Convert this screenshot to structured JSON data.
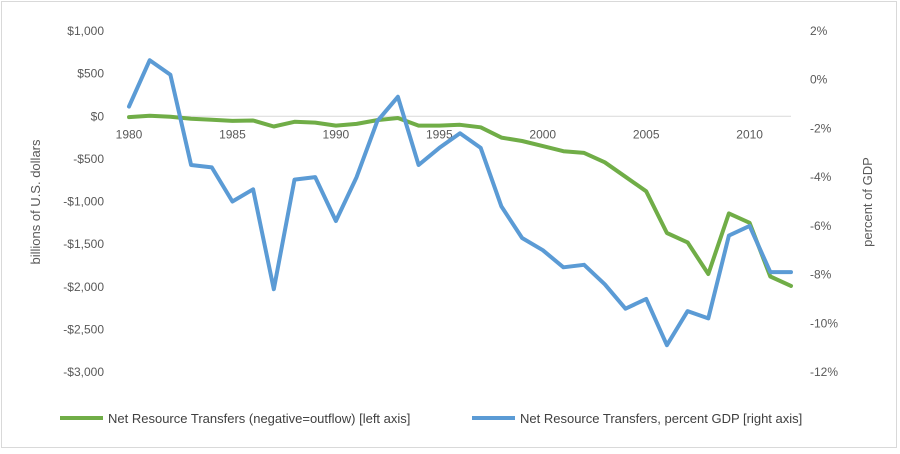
{
  "chart_data": {
    "type": "line",
    "title": "",
    "x": [
      1980,
      1981,
      1982,
      1983,
      1984,
      1985,
      1986,
      1987,
      1988,
      1989,
      1990,
      1991,
      1992,
      1993,
      1994,
      1995,
      1996,
      1997,
      1998,
      1999,
      2000,
      2001,
      2002,
      2003,
      2004,
      2005,
      2006,
      2007,
      2008,
      2009,
      2010,
      2011,
      2012
    ],
    "x_tick_labels": [
      "1980",
      "1985",
      "1990",
      "1995",
      "2000",
      "2005",
      "2010"
    ],
    "x_ticks": [
      1980,
      1985,
      1990,
      1995,
      2000,
      2005,
      2010
    ],
    "xlim": [
      1980,
      2012
    ],
    "left_axis": {
      "label": "billions of U.S. dollars",
      "ylim": [
        -3000,
        1000
      ],
      "ticks": [
        1000,
        500,
        0,
        -500,
        -1000,
        -1500,
        -2000,
        -2500,
        -3000
      ],
      "tick_labels": [
        "$1,000",
        "$500",
        "$0",
        "-$500",
        "-$1,000",
        "-$1,500",
        "-$2,000",
        "-$2,500",
        "-$3,000"
      ]
    },
    "right_axis": {
      "label": "percent of GDP",
      "ylim": [
        -12,
        2
      ],
      "ticks": [
        2,
        0,
        -2,
        -4,
        -6,
        -8,
        -10,
        -12
      ],
      "tick_labels": [
        "2%",
        "0%",
        "-2%",
        "-4%",
        "-6%",
        "-8%",
        "-10%",
        "-12%"
      ]
    },
    "grid": false,
    "legend_position": "bottom",
    "series": [
      {
        "name": "Net Resource Transfers (negative=outflow) [left axis]",
        "axis": "left",
        "color": "#70ad47",
        "values": [
          -10,
          5,
          -5,
          -30,
          -40,
          -55,
          -50,
          -120,
          -65,
          -75,
          -110,
          -90,
          -45,
          -20,
          -110,
          -110,
          -100,
          -130,
          -250,
          -290,
          -350,
          -410,
          -430,
          -540,
          -710,
          -880,
          -1370,
          -1480,
          -1850,
          -1140,
          -1250,
          -1880,
          -1990
        ]
      },
      {
        "name": "Net Resource Transfers, percent GDP [right axis]",
        "axis": "right",
        "color": "#5b9bd5",
        "values": [
          -1.1,
          0.8,
          0.2,
          -3.5,
          -3.6,
          -5.0,
          -4.5,
          -8.6,
          -4.1,
          -4.0,
          -5.8,
          -4.0,
          -1.7,
          -0.7,
          -3.5,
          -2.8,
          -2.2,
          -2.8,
          -5.2,
          -6.5,
          -7.0,
          -7.7,
          -7.6,
          -8.4,
          -9.4,
          -9.0,
          -10.9,
          -9.5,
          -9.8,
          -6.4,
          -6.0,
          -7.9,
          -7.9
        ]
      }
    ]
  }
}
